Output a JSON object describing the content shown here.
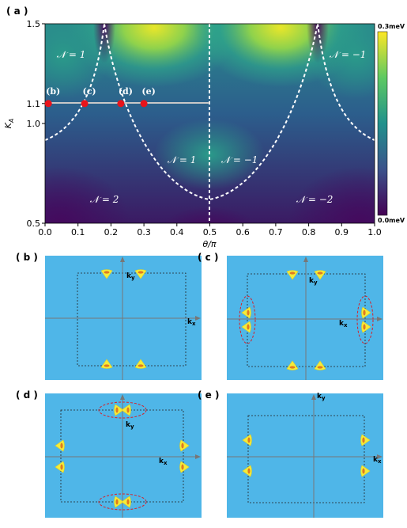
{
  "chart_data": {
    "type": "heatmap",
    "panel_label": "( a )",
    "xlabel": "θ/π",
    "ylabel": {
      "base": "K",
      "sub": "A"
    },
    "xlim": [
      0,
      1
    ],
    "ylim": [
      0.5,
      1.5
    ],
    "xticks": [
      {
        "value": 0,
        "label": "0.0"
      },
      0.1,
      0.2,
      0.3,
      0.4,
      0.5,
      0.6,
      0.7,
      0.8,
      0.9,
      {
        "value": 1,
        "label": "1.0"
      }
    ],
    "yticks": [
      0.5,
      {
        "value": 1,
        "label": "1.0"
      },
      1.1,
      1.5
    ],
    "colorbar": {
      "max_label": "0.3meV",
      "min_label": "0.0meV"
    },
    "regions": [
      "𝒩 = 1",
      "𝒩 = −1",
      "𝒩 = 1",
      "𝒩 = −1",
      "𝒩 = 2",
      "𝒩 = −2"
    ],
    "points": {
      "labels": [
        "(b)",
        "(c)",
        "(d)",
        "(e)"
      ],
      "x": [
        0.01,
        0.12,
        0.23,
        0.3
      ],
      "y": [
        1.1,
        1.1,
        1.1,
        1.1
      ],
      "color": "#e8141b"
    }
  },
  "panels": [
    {
      "label": "( b )",
      "kx": {
        "base": "k",
        "sub": "x"
      },
      "ky": {
        "base": "k",
        "sub": "y"
      }
    },
    {
      "label": "( c )",
      "kx": {
        "base": "k",
        "sub": "x"
      },
      "ky": {
        "base": "k",
        "sub": "y"
      }
    },
    {
      "label": "( d )",
      "kx": {
        "base": "k",
        "sub": "x"
      },
      "ky": {
        "base": "k",
        "sub": "y"
      }
    },
    {
      "label": "( e )",
      "kx": {
        "base": "k",
        "sub": "x"
      },
      "ky": {
        "base": "k",
        "sub": "y"
      }
    }
  ]
}
